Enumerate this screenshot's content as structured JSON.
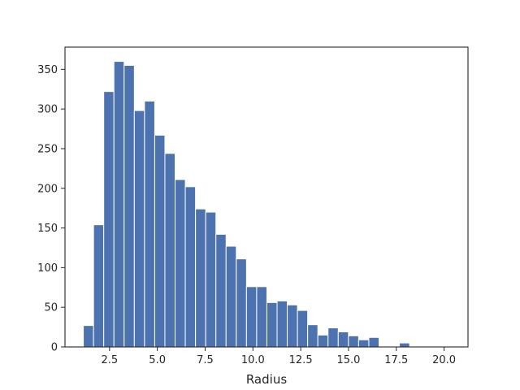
{
  "chart_data": {
    "type": "bar",
    "title": "",
    "xlabel": "Radius",
    "ylabel": "",
    "xlim": [
      0.17,
      21.25
    ],
    "ylim": [
      0,
      378
    ],
    "grid": false,
    "x_ticks": [
      "2.5",
      "5.0",
      "7.5",
      "10.0",
      "12.5",
      "15.0",
      "17.5",
      "20.0"
    ],
    "x_tick_values": [
      2.5,
      5.0,
      7.5,
      10.0,
      12.5,
      15.0,
      17.5,
      20.0
    ],
    "y_ticks": [
      "0",
      "50",
      "100",
      "150",
      "200",
      "250",
      "300",
      "350"
    ],
    "y_tick_values": [
      0,
      50,
      100,
      150,
      200,
      250,
      300,
      350
    ],
    "bin_start": 1.13,
    "bin_width": 0.5333,
    "bar_color": "#4c72b0",
    "values": [
      27,
      154,
      322,
      360,
      355,
      298,
      310,
      267,
      244,
      211,
      202,
      174,
      170,
      142,
      127,
      111,
      76,
      76,
      56,
      58,
      53,
      46,
      28,
      15,
      24,
      19,
      14,
      9,
      12,
      0,
      0,
      5,
      0,
      0,
      0,
      0
    ]
  }
}
